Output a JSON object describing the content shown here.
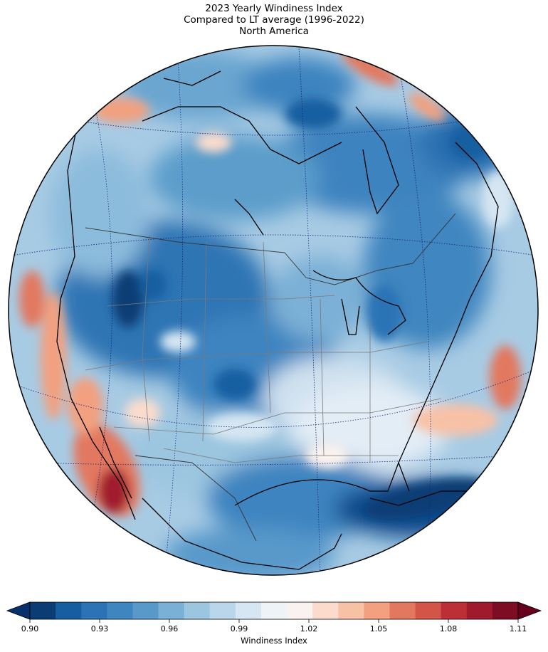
{
  "title": {
    "line1": "2023 Yearly Windiness Index",
    "line2": "Compared to LT average (1996-2022)",
    "line3": "North America"
  },
  "colorbar": {
    "label": "Windiness Index",
    "min": 0.9,
    "max": 1.11,
    "ticks": [
      "0.90",
      "0.93",
      "0.96",
      "0.99",
      "1.02",
      "1.05",
      "1.08",
      "1.11"
    ],
    "tick_values": [
      0.9,
      0.93,
      0.96,
      0.99,
      1.02,
      1.05,
      1.08,
      1.11
    ],
    "colors": [
      "#0b3c74",
      "#175ea0",
      "#2b73b5",
      "#3f86c0",
      "#5899ca",
      "#7bb0d6",
      "#9cc6e0",
      "#bad6ea",
      "#d6e6f2",
      "#eef3f8",
      "#f9f2ee",
      "#fbdccc",
      "#f7c1a6",
      "#f2a07f",
      "#e2785f",
      "#d25548",
      "#bd2f37",
      "#a01a2e",
      "#7c0d22"
    ],
    "extend": "both",
    "cmap": "RdBu_r"
  },
  "map": {
    "projection": "orthographic",
    "region": "North America",
    "features": [
      "coastlines",
      "country-borders",
      "state-borders",
      "graticule"
    ]
  },
  "icons": {
    "globe": "globe-map",
    "arrow_left": "colorbar-extend-low",
    "arrow_right": "colorbar-extend-high"
  }
}
